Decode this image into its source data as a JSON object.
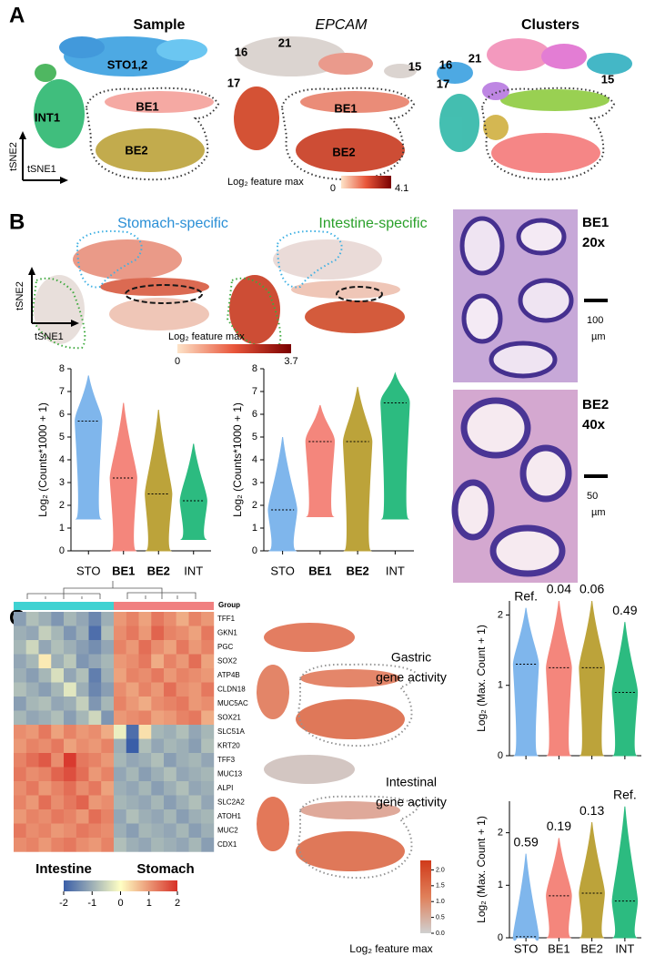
{
  "panel_a": {
    "letter": "A",
    "titles": [
      "Sample",
      "EPCAM",
      "Clusters"
    ],
    "sample_labels": [
      "STO1,2",
      "INT1",
      "BE1",
      "BE2"
    ],
    "epcam_labels": [
      "16",
      "21",
      "17",
      "15",
      "BE1",
      "BE2"
    ],
    "cluster_labels": [
      "16",
      "21",
      "17",
      "15"
    ],
    "axis_labels": [
      "tSNE2",
      "tSNE1"
    ],
    "scale": {
      "title": "Log₂ feature max",
      "ticks": [
        0,
        4.1
      ],
      "colors": [
        "#fde3c8",
        "#e8553a",
        "#7a0000"
      ]
    }
  },
  "panel_b": {
    "letter": "B",
    "titles": [
      "Stomach-specific",
      "Intestine-specific"
    ],
    "axis_labels": [
      "tSNE2",
      "tSNE1"
    ],
    "scale": {
      "title": "Log₂ feature max",
      "ticks": [
        0,
        3.7
      ],
      "colors": [
        "#fde3c8",
        "#e8553a",
        "#7a0000"
      ]
    },
    "histology": [
      {
        "labels": [
          "BE1",
          "20x"
        ],
        "scale_bar": [
          "100",
          "µm"
        ]
      },
      {
        "labels": [
          "BE2",
          "40x"
        ],
        "scale_bar": [
          "50",
          "µm"
        ]
      }
    ]
  },
  "panel_c": {
    "letter": "C",
    "activity_labels": [
      [
        "Gastric",
        "gene activity"
      ],
      [
        "Intestinal",
        "gene activity"
      ]
    ],
    "scale": {
      "title": "Log₂ feature max",
      "lim": [
        0,
        2.3
      ],
      "colors": [
        "#d0d0d0",
        "#e0805a",
        "#d03a1a"
      ],
      "ticks": [
        {
          "value": 0,
          "label": "0.0"
        },
        {
          "value": 0.5,
          "label": "0.5"
        },
        {
          "value": 1,
          "label": "1.0"
        },
        {
          "value": 1.5,
          "label": "1.5"
        },
        {
          "value": 2,
          "label": "2.0"
        }
      ]
    }
  },
  "chart_data": [
    {
      "type": "violin",
      "ylabel": "Log₂ (Counts*1000 + 1)",
      "categories": [
        "STO",
        "BE1",
        "BE2",
        "INT"
      ],
      "values": [
        5.7,
        3.2,
        2.5,
        2.2
      ],
      "mins": [
        1.4,
        0,
        0,
        0.5
      ],
      "maxs": [
        7.7,
        6.5,
        6.2,
        4.7
      ],
      "colors": [
        "#7fb6ec",
        "#f4867c",
        "#bca33a",
        "#2cbb80"
      ],
      "ylim": [
        0,
        8
      ],
      "yticks": [
        0,
        1,
        2,
        3,
        4,
        5,
        6,
        7,
        8
      ]
    },
    {
      "type": "violin",
      "ylabel": "Log₂ (Counts*1000 + 1)",
      "categories": [
        "STO",
        "BE1",
        "BE2",
        "INT"
      ],
      "values": [
        1.8,
        4.8,
        4.8,
        6.5
      ],
      "mins": [
        0,
        1.5,
        0,
        1.4
      ],
      "maxs": [
        5,
        6.4,
        7.2,
        7.8
      ],
      "colors": [
        "#7fb6ec",
        "#f4867c",
        "#bca33a",
        "#2cbb80"
      ],
      "ylim": [
        0,
        8
      ],
      "yticks": [
        0,
        1,
        2,
        3,
        4,
        5,
        6,
        7,
        8
      ]
    },
    {
      "type": "violin",
      "ylabel": "Log₂ (Max. Count  + 1)",
      "categories": [
        null,
        null,
        null,
        null
      ],
      "values": [
        1.3,
        1.25,
        1.25,
        0.9
      ],
      "mins": [
        0,
        0,
        0,
        0
      ],
      "maxs": [
        2.1,
        2.2,
        2.2,
        1.9
      ],
      "annotations": [
        "Ref.",
        "0.04",
        "0.06",
        "0.49"
      ],
      "colors": [
        "#7fb6ec",
        "#f4867c",
        "#bca33a",
        "#2cbb80"
      ],
      "ylim": [
        0,
        2.2
      ],
      "yticks": [
        0,
        1,
        2
      ]
    },
    {
      "type": "violin",
      "ylabel": "Log₂ (Max. Count  + 1)",
      "categories": [
        "STO",
        "BE1",
        "BE2",
        "INT"
      ],
      "values": [
        0.02,
        0.8,
        0.85,
        0.7
      ],
      "mins": [
        0,
        0,
        0,
        0
      ],
      "maxs": [
        1.6,
        1.9,
        2.2,
        2.5
      ],
      "annotations": [
        "0.59",
        "0.19",
        "0.13",
        "Ref."
      ],
      "colors": [
        "#7fb6ec",
        "#f4867c",
        "#bca33a",
        "#2cbb80"
      ],
      "ylim": [
        0,
        2.6
      ],
      "yticks": [
        0,
        1,
        2
      ]
    },
    {
      "type": "heatmap",
      "group_title": "Group",
      "groups": [
        {
          "name": "Intestine",
          "color": "#3fd2d2",
          "columns": 8
        },
        {
          "name": "Stomach",
          "color": "#f08080",
          "columns": 8
        }
      ],
      "rows": [
        "TFF1",
        "GKN1",
        "PGC",
        "SOX2",
        "ATP4B",
        "CLDN18",
        "MUC5AC",
        "SOX21",
        "SLC51A",
        "KRT20",
        "TFF3",
        "MUC13",
        "ALPI",
        "SLC2A2",
        "ATOH1",
        "MUC2",
        "CDX1"
      ],
      "values": [
        [
          -1.2,
          -0.8,
          -1.0,
          -1.3,
          -0.9,
          -1.1,
          -1.5,
          -1.0,
          1.0,
          1.2,
          0.9,
          1.3,
          1.1,
          0.8,
          1.2,
          1.0
        ],
        [
          -1.0,
          -1.1,
          -0.6,
          -0.9,
          -1.3,
          -1.0,
          -1.8,
          -0.8,
          1.1,
          1.3,
          1.0,
          1.5,
          1.2,
          1.1,
          0.9,
          1.3
        ],
        [
          -0.9,
          -0.5,
          -1.1,
          -0.8,
          -1.0,
          -1.2,
          -1.4,
          -1.1,
          1.2,
          1.0,
          1.4,
          1.1,
          0.9,
          1.3,
          1.0,
          1.2
        ],
        [
          -1.1,
          -0.9,
          0.2,
          -1.0,
          -0.7,
          -1.3,
          -1.1,
          -0.9,
          1.0,
          1.1,
          1.3,
          0.8,
          1.2,
          1.0,
          1.4,
          0.9
        ],
        [
          -1.0,
          -1.2,
          -0.9,
          -0.4,
          -1.1,
          -0.8,
          -1.6,
          -1.0,
          0.9,
          1.2,
          1.1,
          1.3,
          1.0,
          1.2,
          1.1,
          1.0
        ],
        [
          -0.8,
          -1.0,
          -1.2,
          -0.9,
          -0.3,
          -1.0,
          -1.5,
          -1.2,
          1.1,
          0.9,
          1.2,
          1.0,
          1.4,
          1.1,
          1.0,
          1.3
        ],
        [
          -1.2,
          -0.9,
          -0.8,
          -1.1,
          -1.0,
          -0.6,
          -1.3,
          -0.9,
          1.2,
          1.0,
          0.8,
          1.1,
          1.2,
          1.3,
          1.0,
          1.1
        ],
        [
          -0.9,
          -1.1,
          -1.0,
          -0.8,
          -1.2,
          -0.9,
          -0.5,
          -1.3,
          1.0,
          1.1,
          1.2,
          0.9,
          1.0,
          1.2,
          1.3,
          0.8
        ],
        [
          1.1,
          1.0,
          1.3,
          0.9,
          1.2,
          1.0,
          1.1,
          0.8,
          -0.2,
          -1.8,
          0.3,
          -0.9,
          -1.0,
          -0.8,
          -1.1,
          -0.9
        ],
        [
          1.0,
          1.2,
          1.1,
          1.3,
          0.9,
          1.1,
          1.0,
          1.2,
          -1.0,
          -2.0,
          -0.8,
          -1.1,
          -0.9,
          -1.0,
          -1.2,
          -0.8
        ],
        [
          1.2,
          1.4,
          1.6,
          1.1,
          1.9,
          1.3,
          1.2,
          1.0,
          -0.9,
          -1.1,
          -1.0,
          -0.8,
          -1.2,
          -1.0,
          -0.9,
          -1.1
        ],
        [
          1.3,
          1.1,
          1.2,
          1.5,
          1.7,
          1.4,
          1.0,
          1.2,
          -1.1,
          -0.9,
          -1.2,
          -1.0,
          -0.8,
          -1.1,
          -1.0,
          -0.9
        ],
        [
          1.1,
          1.3,
          1.0,
          1.2,
          1.4,
          1.1,
          1.3,
          0.9,
          -1.0,
          -1.1,
          -0.9,
          -1.2,
          -1.0,
          -0.8,
          -1.1,
          -1.0
        ],
        [
          1.2,
          1.0,
          1.4,
          1.1,
          1.3,
          1.5,
          1.0,
          1.1,
          -0.9,
          -1.0,
          -1.1,
          -0.9,
          -1.2,
          -1.0,
          -0.8,
          -1.1
        ],
        [
          1.0,
          1.2,
          1.1,
          1.3,
          1.2,
          1.0,
          1.4,
          1.2,
          -1.1,
          -0.8,
          -1.0,
          -1.1,
          -0.9,
          -1.2,
          -1.0,
          -0.9
        ],
        [
          1.3,
          1.1,
          1.2,
          1.0,
          1.1,
          1.3,
          1.2,
          1.1,
          -1.0,
          -1.2,
          -0.9,
          -1.0,
          -1.1,
          -0.9,
          -1.2,
          -1.0
        ],
        [
          1.1,
          1.2,
          1.0,
          1.2,
          1.3,
          1.1,
          1.0,
          1.2,
          -0.8,
          -1.0,
          -1.1,
          -0.9,
          -1.0,
          -1.1,
          -0.9,
          -1.2
        ]
      ],
      "zlim": [
        -2,
        2
      ],
      "zticks": [
        -2,
        -1,
        0,
        1,
        2
      ],
      "colors": [
        "#3a5ea8",
        "#ffffc4",
        "#d73027"
      ]
    }
  ]
}
